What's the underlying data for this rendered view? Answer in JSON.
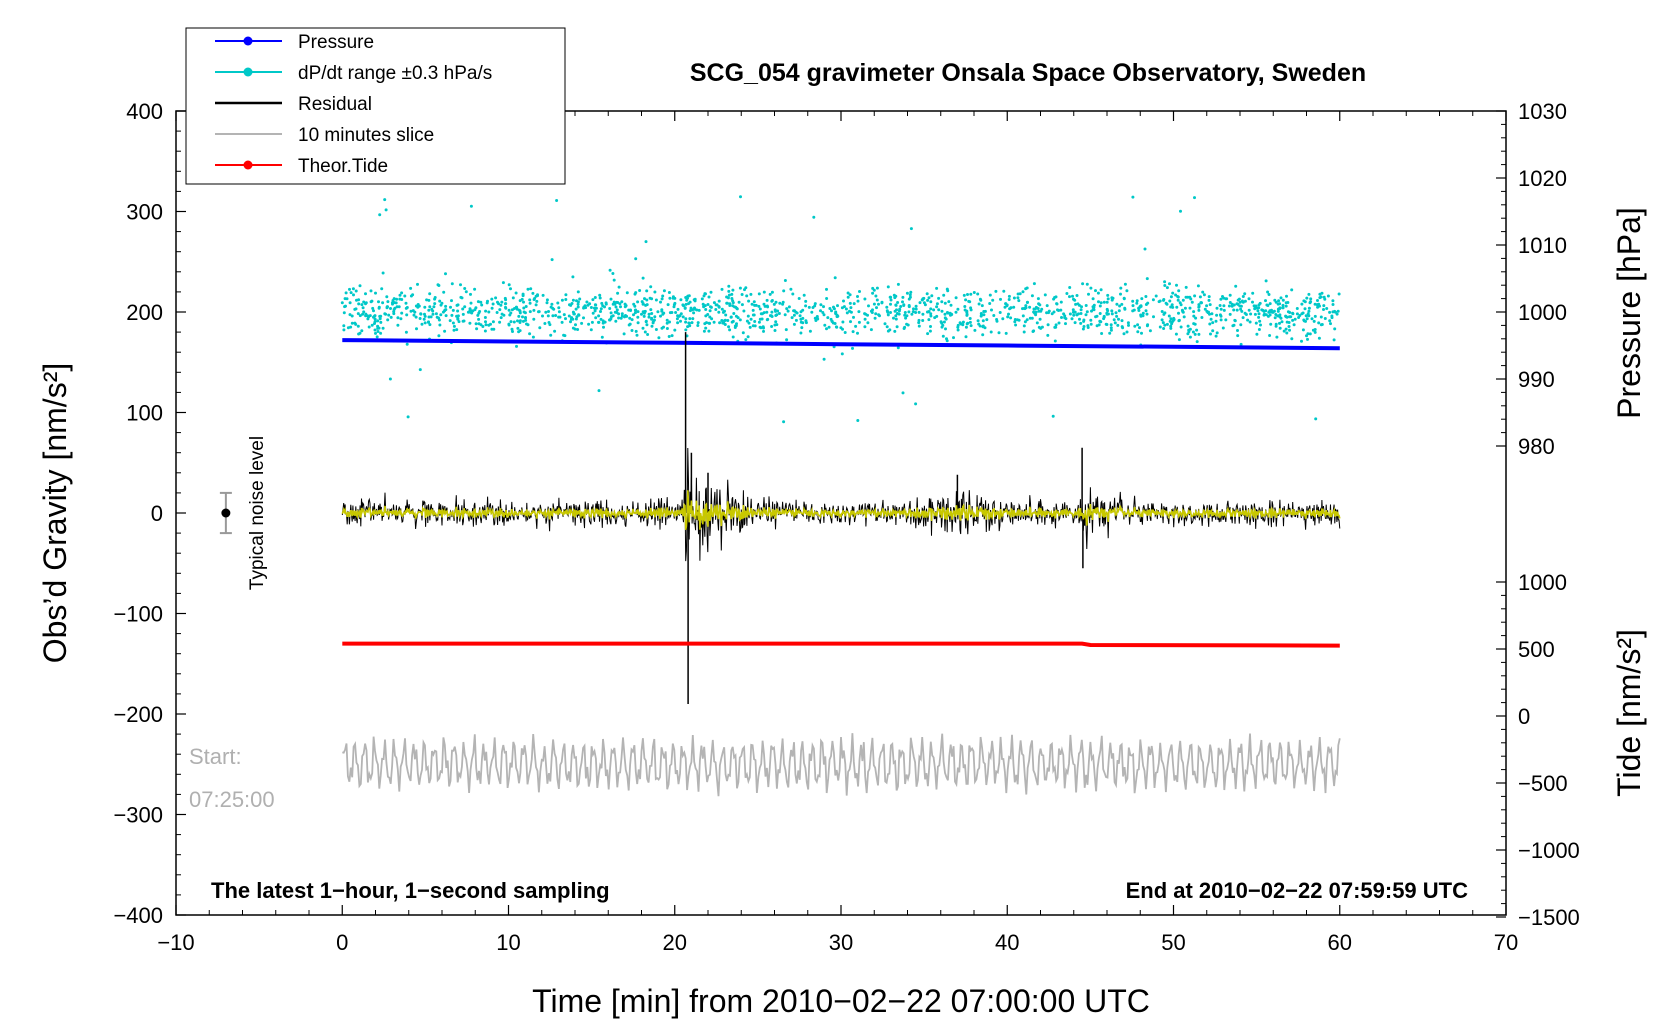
{
  "chart_data": {
    "type": "line",
    "title": "SCG_054 gravimeter Onsala Space Observatory, Sweden",
    "xlabel": "Time [min] from 2010−02−22 07:00:00 UTC",
    "ylabel_left": "Obs’d Gravity [nm/s²]",
    "ylabel_pressure": "Pressure [hPa]",
    "ylabel_tide": "Tide [nm/s²]",
    "xlim": [
      -10,
      70
    ],
    "ylim": [
      -400,
      400
    ],
    "pressure_lim": [
      980,
      1030
    ],
    "tide_lim": [
      -1500,
      1000
    ],
    "x_ticks": [
      "−10",
      "0",
      "10",
      "20",
      "30",
      "40",
      "50",
      "60",
      "70"
    ],
    "y_ticks": [
      "400",
      "300",
      "200",
      "100",
      "0",
      "−100",
      "−200",
      "−300",
      "−400"
    ],
    "pressure_ticks": [
      "1030",
      "1020",
      "1010",
      "1000",
      "990",
      "980"
    ],
    "tide_ticks": [
      "1000",
      "500",
      "0",
      "−500",
      "−1000",
      "−1500"
    ],
    "bottom_left_note": "The latest 1−hour, 1−second sampling",
    "bottom_right_note": "End at 2010−02−22 07:59:59 UTC",
    "start_label": "Start:",
    "start_time": "07:25:00",
    "noise_label": "Typical noise level",
    "noise_bar": {
      "x": -7,
      "center": 0,
      "halfwidth": 20
    },
    "legend": [
      {
        "label": "Pressure",
        "color": "#0000ff",
        "marker": true
      },
      {
        "label": "dP/dt range ±0.3 hPa/s",
        "color": "#00c8c8",
        "marker": true
      },
      {
        "label": "Residual",
        "color": "#000000",
        "marker": false
      },
      {
        "label": "10 minutes slice",
        "color": "#b4b4b4",
        "marker": false
      },
      {
        "label": "Theor.Tide",
        "color": "#ff0000",
        "marker": true
      }
    ],
    "series": [
      {
        "name": "Pressure",
        "axis": "pressure",
        "color": "#0000ff",
        "x": [
          0,
          10,
          20,
          30,
          40,
          50,
          60
        ],
        "values": [
          995.8,
          995.6,
          995.4,
          995.2,
          995.0,
          994.8,
          994.6
        ]
      },
      {
        "name": "dP/dt range ±0.3 hPa/s",
        "axis": "gravity",
        "color": "#00c8c8",
        "center": 200,
        "spread": 20,
        "x_range": [
          0,
          60
        ]
      },
      {
        "name": "Residual",
        "axis": "gravity",
        "color": "#000000",
        "x": [
          0,
          20.5,
          20.65,
          20.8,
          21,
          22,
          37,
          44.5,
          44.55,
          60
        ],
        "values": [
          0,
          0,
          180,
          -190,
          60,
          40,
          38,
          65,
          -55,
          0
        ]
      },
      {
        "name": "Filtered",
        "axis": "gravity",
        "color": "#c8c800"
      },
      {
        "name": "10 minutes slice",
        "axis": "gravity",
        "color": "#b4b4b4",
        "center": -250,
        "x_range": [
          0,
          60
        ]
      },
      {
        "name": "Theor.Tide",
        "axis": "tide",
        "color": "#ff0000",
        "x": [
          0,
          44.5,
          45,
          60
        ],
        "values": [
          540,
          540,
          530,
          525
        ]
      }
    ]
  }
}
